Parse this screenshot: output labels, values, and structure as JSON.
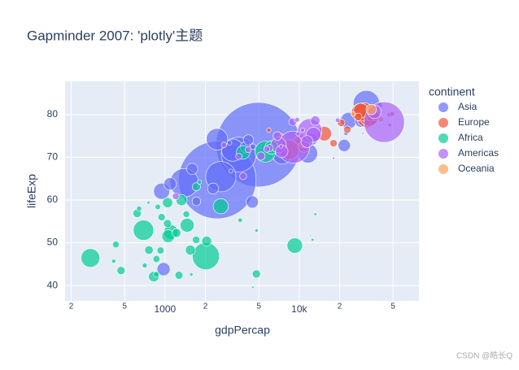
{
  "chart_data": {
    "type": "scatter",
    "title": "Gapminder 2007: 'plotly'主题",
    "x_label": "gdpPercap",
    "y_label": "lifeExp",
    "legend_title": "continent",
    "legend_position": "right",
    "log_x": true,
    "grid": true,
    "xlim": [
      180,
      78000
    ],
    "ylim": [
      36.4,
      87.8
    ],
    "xticks": [
      {
        "value": 200,
        "label": "2"
      },
      {
        "value": 500,
        "label": "5"
      },
      1000,
      {
        "value": 2000,
        "label": "2"
      },
      {
        "value": 5000,
        "label": "5"
      },
      {
        "value": 10000,
        "label": "10k"
      },
      {
        "value": 20000,
        "label": "2"
      },
      {
        "value": 50000,
        "label": "5"
      }
    ],
    "yticks": [
      40,
      50,
      60,
      70,
      80
    ],
    "watermark": "CSDN @皓长Q",
    "series": [
      {
        "name": "Asia",
        "color": "#636efa",
        "x": [
          4959,
          2452,
          3541,
          2606,
          1391,
          31656,
          3190,
          2442,
          11606,
          7458,
          944,
          23348,
          975,
          1091,
          4471,
          12452,
          21655,
          28718,
          3970,
          2281,
          4185,
          1714,
          39725,
          25523,
          47143,
          47307,
          3096,
          4519,
          10461,
          22316,
          1593,
          29796,
          3025
        ],
        "y": [
          72.96,
          64.7,
          70.65,
          65.48,
          64.06,
          82.6,
          71.69,
          74.25,
          70.96,
          70.62,
          62.07,
          78.62,
          43.83,
          63.79,
          59.55,
          74.24,
          72.78,
          78.4,
          72.4,
          62.7,
          74.1,
          59.7,
          82.2,
          80.7,
          80.0,
          77.6,
          66.8,
          72.5,
          72.0,
          75.6,
          67.3,
          75.6,
          73.4
        ],
        "size": [
          1318.7,
          1110.4,
          223.5,
          169.3,
          150.4,
          127.5,
          91.1,
          85.3,
          69.5,
          65.1,
          47.8,
          49.0,
          31.9,
          28.9,
          27.5,
          24.8,
          27.6,
          23.2,
          20.4,
          22.2,
          19.3,
          14.1,
          6.98,
          6.43,
          4.55,
          2.5,
          2.87,
          6.05,
          3.92,
          3.2,
          23.3,
          0.71,
          4.0
        ]
      },
      {
        "name": "Europe",
        "color": "#EF553B",
        "x": [
          32170,
          8458,
          30470,
          33203,
          28570,
          28821,
          15390,
          10808,
          36798,
          27538,
          20510,
          33693,
          22833,
          18009,
          33860,
          9786,
          10681,
          37506,
          49357,
          5937,
          7446,
          40676
        ],
        "y": [
          79.41,
          71.78,
          80.66,
          79.43,
          80.55,
          80.94,
          75.56,
          72.48,
          79.76,
          79.48,
          78.1,
          79.4,
          76.5,
          73.3,
          80.9,
          74.0,
          73.0,
          81.7,
          80.2,
          76.4,
          74.9,
          78.9
        ],
        "size": [
          82.4,
          71.2,
          61.1,
          60.8,
          58.1,
          40.4,
          38.5,
          22.3,
          16.6,
          10.7,
          10.6,
          10.4,
          10.2,
          9.96,
          9.03,
          10.2,
          7.3,
          7.55,
          4.6,
          3.6,
          4.55,
          4.1
        ]
      },
      {
        "name": "Africa",
        "color": "#00cc96",
        "x": [
          2014,
          691,
          5581,
          278,
          9270,
          2602,
          1107,
          1463,
          3820,
          6223,
          1056,
          1328,
          824,
          1045,
          1545,
          2042,
          4797,
          470,
          759,
          620,
          1217,
          1043,
          1712,
          1271,
          7093,
          1704,
          943,
          863,
          926,
          430,
          1441,
          863,
          12057,
          883,
          641,
          415,
          706,
          3633,
          1803,
          12570,
          13206,
          4811,
          1569,
          753,
          10957,
          12154,
          4513
        ],
        "y": [
          46.86,
          52.95,
          71.34,
          46.46,
          49.34,
          58.56,
          52.52,
          54.11,
          71.16,
          72.3,
          51.54,
          60.0,
          42.08,
          59.4,
          48.3,
          50.4,
          42.7,
          43.5,
          48.3,
          56.9,
          52.3,
          54.5,
          63.1,
          42.4,
          73.9,
          50.7,
          56.0,
          46.2,
          48.2,
          49.6,
          56.7,
          42.6,
          74.0,
          58.4,
          58.0,
          45.7,
          44.7,
          55.3,
          64.2,
          50.7,
          56.7,
          52.9,
          42.6,
          59.4,
          72.8,
          51.6,
          39.6
        ],
        "size": [
          135.0,
          76.5,
          80.3,
          64.6,
          44.0,
          42.3,
          38.1,
          35.6,
          33.8,
          33.3,
          29.2,
          22.9,
          19.95,
          19.2,
          18.0,
          17.7,
          12.4,
          12.3,
          13.3,
          12.9,
          14.3,
          12.0,
          12.3,
          11.7,
          10.3,
          10.2,
          9.9,
          8.86,
          9.1,
          8.4,
          8.1,
          6.1,
          6.0,
          5.7,
          4.9,
          3.2,
          4.4,
          3.8,
          3.3,
          1.64,
          1.45,
          2.06,
          2.0,
          1.69,
          1.25,
          0.55,
          1.13
        ]
      },
      {
        "name": "Americas",
        "color": "#ab63fa",
        "x": [
          42952,
          9066,
          11978,
          7007,
          12779,
          36319,
          7409,
          11416,
          13172,
          6873,
          5186,
          8948,
          3822,
          1202,
          6025,
          3548,
          5728,
          4173,
          2749,
          9645,
          19329,
          10611,
          9809,
          7321,
          18009
        ],
        "y": [
          78.24,
          72.39,
          76.2,
          72.9,
          75.3,
          80.65,
          71.4,
          73.7,
          78.6,
          75.0,
          70.3,
          78.3,
          65.6,
          60.9,
          72.2,
          70.2,
          71.9,
          71.8,
          72.9,
          78.8,
          78.7,
          76.4,
          75.5,
          72.6,
          69.8
        ],
        "size": [
          301.1,
          190.0,
          108.7,
          44.2,
          40.3,
          33.4,
          28.7,
          26.1,
          16.3,
          13.8,
          12.6,
          11.4,
          9.1,
          8.5,
          9.3,
          7.5,
          6.9,
          6.7,
          5.7,
          4.1,
          3.9,
          3.4,
          3.2,
          2.8,
          1.06
        ]
      },
      {
        "name": "Oceania",
        "color": "#FFA15A",
        "x": [
          34435,
          25185
        ],
        "y": [
          81.2,
          80.2
        ],
        "size": [
          20.4,
          4.1
        ]
      }
    ]
  }
}
